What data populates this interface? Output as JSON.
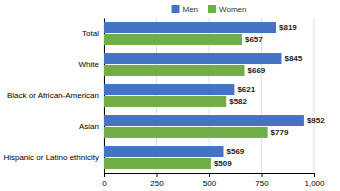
{
  "chart_data": {
    "type": "bar",
    "orientation": "horizontal",
    "categories": [
      "Total",
      "White",
      "Black or African-American",
      "Asian",
      "Hispanic or Latino ethnicity"
    ],
    "series": [
      {
        "name": "Men",
        "color": "#4472c4",
        "values": [
          819,
          845,
          621,
          952,
          569
        ],
        "value_labels": [
          "$819",
          "$845",
          "$621",
          "$952",
          "$569"
        ]
      },
      {
        "name": "Women",
        "color": "#70ad47",
        "values": [
          657,
          669,
          582,
          779,
          509
        ],
        "value_labels": [
          "$657",
          "$669",
          "$582",
          "$779",
          "$509"
        ]
      }
    ],
    "xlim": [
      0,
      1000
    ],
    "xticks": [
      0,
      250,
      500,
      750,
      {
        "value": 1000,
        "label": "1,000"
      }
    ],
    "grid": true,
    "legend": "top",
    "data_labels": true
  }
}
